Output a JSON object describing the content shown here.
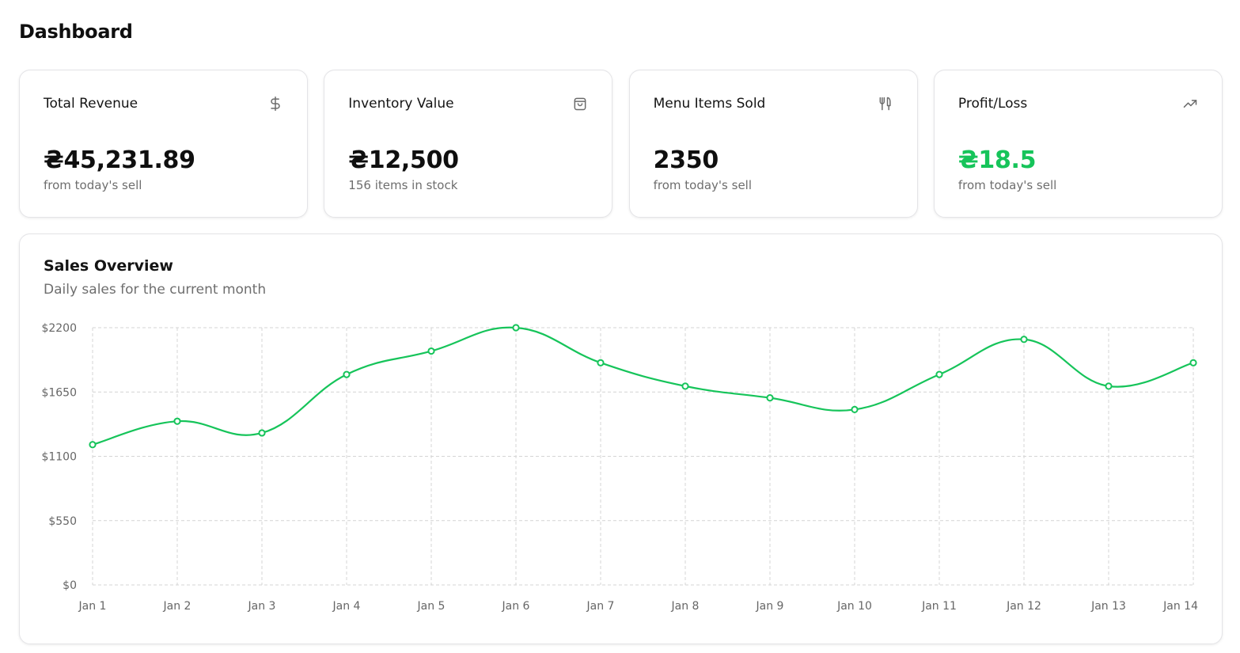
{
  "header": {
    "title": "Dashboard"
  },
  "cards": [
    {
      "label": "Total Revenue",
      "value": "₴45,231.89",
      "sub": "from today's sell",
      "icon": "dollar-icon",
      "value_color": "#0f0f0f"
    },
    {
      "label": "Inventory Value",
      "value": "₴12,500",
      "sub": "156 items in stock",
      "icon": "shopping-bag-icon",
      "value_color": "#0f0f0f"
    },
    {
      "label": "Menu Items Sold",
      "value": "2350",
      "sub": "from today's sell",
      "icon": "utensils-icon",
      "value_color": "#0f0f0f"
    },
    {
      "label": "Profit/Loss",
      "value": "₴18.5",
      "sub": "from today's sell",
      "icon": "trending-up-icon",
      "value_color": "#16c45a"
    }
  ],
  "colors": {
    "accent": "#16c45a",
    "grid": "#d4d4d4",
    "muted_text": "#6e6e6e"
  },
  "chart_data": {
    "type": "line",
    "title": "Sales Overview",
    "subtitle": "Daily sales for the current month",
    "xlabel": "",
    "ylabel": "",
    "categories": [
      "Jan 1",
      "Jan 2",
      "Jan 3",
      "Jan 4",
      "Jan 5",
      "Jan 6",
      "Jan 7",
      "Jan 8",
      "Jan 9",
      "Jan 10",
      "Jan 11",
      "Jan 12",
      "Jan 13",
      "Jan 14"
    ],
    "series": [
      {
        "values": [
          1200,
          1400,
          1300,
          1800,
          2000,
          2200,
          1900,
          1700,
          1600,
          1500,
          1800,
          2100,
          1700,
          1900
        ]
      }
    ],
    "ylim": [
      0,
      2200
    ],
    "yticks": [
      0,
      550,
      1100,
      1650,
      2200
    ],
    "ytick_labels": [
      "$0",
      "$550",
      "$1100",
      "$1650",
      "$2200"
    ],
    "grid": true,
    "curve": "smooth",
    "legend": "none"
  }
}
